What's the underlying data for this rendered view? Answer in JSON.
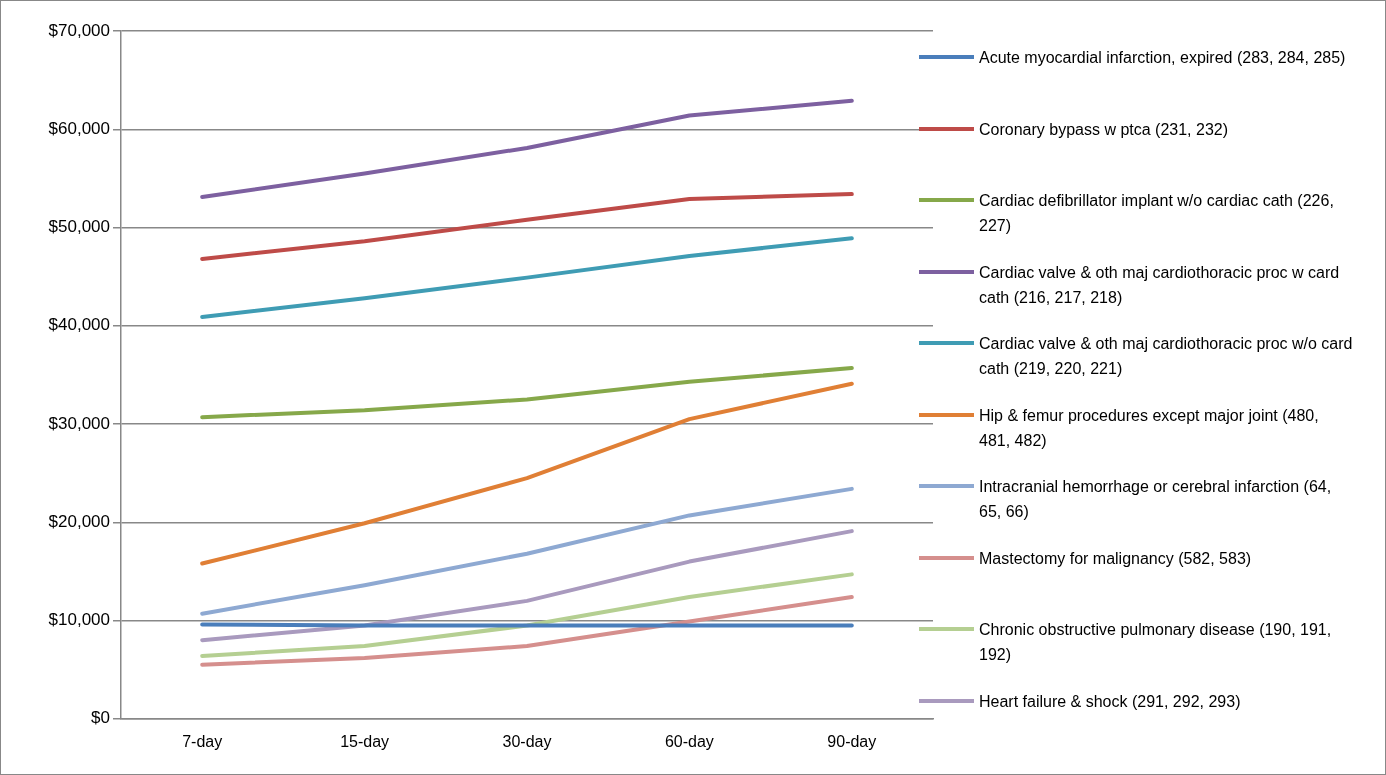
{
  "chart_data": {
    "type": "line",
    "categories": [
      "7-day",
      "15-day",
      "30-day",
      "60-day",
      "90-day"
    ],
    "series": [
      {
        "name": "Acute myocardial infarction, expired (283, 284, 285)",
        "color": "#4a7ebb",
        "values": [
          9600,
          9500,
          9500,
          9500,
          9500
        ]
      },
      {
        "name": "Coronary bypass w ptca (231, 232)",
        "color": "#be4b48",
        "values": [
          46800,
          48600,
          50800,
          52900,
          53400
        ]
      },
      {
        "name": "Cardiac defibrillator implant  w/o cardiac cath (226, 227)",
        "color": "#86a84a",
        "values": [
          30700,
          31400,
          32500,
          34300,
          35700
        ]
      },
      {
        "name": "Cardiac valve & oth maj cardiothoracic proc w card cath (216, 217, 218)",
        "color": "#7d60a0",
        "values": [
          53100,
          55500,
          58100,
          61400,
          62900
        ]
      },
      {
        "name": "Cardiac valve & oth maj cardiothoracic proc w/o card cath (219, 220, 221)",
        "color": "#3f9cb4",
        "values": [
          40900,
          42800,
          44900,
          47100,
          48900
        ]
      },
      {
        "name": "Hip & femur procedures except major joint (480, 481, 482)",
        "color": "#e07f35",
        "values": [
          15800,
          19900,
          24500,
          30500,
          34100
        ]
      },
      {
        "name": "Intracranial hemorrhage or cerebral infarction (64, 65, 66)",
        "color": "#8ea9d2",
        "values": [
          10700,
          13600,
          16800,
          20700,
          23400
        ]
      },
      {
        "name": "Mastectomy for malignancy (582, 583)",
        "color": "#d58f8d",
        "values": [
          5500,
          6200,
          7400,
          9900,
          12400
        ]
      },
      {
        "name": "Chronic obstructive pulmonary disease (190, 191, 192)",
        "color": "#b5cf92",
        "values": [
          6400,
          7400,
          9500,
          12400,
          14700
        ]
      },
      {
        "name": "Heart failure & shock (291, 292, 293)",
        "color": "#a99abe",
        "values": [
          8000,
          9500,
          12000,
          16000,
          19100
        ]
      }
    ],
    "ylim": [
      0,
      70000
    ],
    "yticks": [
      {
        "value": 0,
        "label": "$0"
      },
      {
        "value": 10000,
        "label": "$10,000"
      },
      {
        "value": 20000,
        "label": "$20,000"
      },
      {
        "value": 30000,
        "label": "$30,000"
      },
      {
        "value": 40000,
        "label": "$40,000"
      },
      {
        "value": 50000,
        "label": "$50,000"
      },
      {
        "value": 60000,
        "label": "$60,000"
      },
      {
        "value": 70000,
        "label": "$70,000"
      }
    ],
    "grid": "y",
    "legend": "right",
    "marker": "none",
    "line_style": "solid"
  }
}
